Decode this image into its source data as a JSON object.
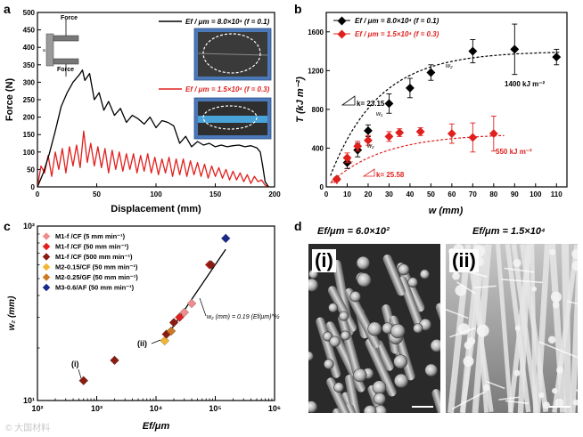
{
  "panels": {
    "a": {
      "letter": "a",
      "ylabel": "Force (N)",
      "xlabel": "Displacement (mm)",
      "yticks": [
        "0",
        "50",
        "100",
        "150",
        "200",
        "250",
        "300",
        "350",
        "400",
        "450",
        "500"
      ],
      "xticks": [
        "0",
        "50",
        "100",
        "150",
        "200"
      ],
      "inset_top_label": "Force",
      "inset_bottom_label": "Force",
      "legend": [
        {
          "text": "Ef / μm = 8.0×10⁴ (f = 0.1)",
          "color": "#000000"
        },
        {
          "text": "Ef / μm = 1.5×10⁴ (f = 0.3)",
          "color": "#e0201e"
        }
      ]
    },
    "b": {
      "letter": "b",
      "ylabel": "T (kJ m⁻²)",
      "xlabel": "w (mm)",
      "yticks": [
        "0",
        "400",
        "800",
        "1200",
        "1600"
      ],
      "xticks": [
        "0",
        "10",
        "20",
        "30",
        "40",
        "50",
        "60",
        "70",
        "80",
        "90",
        "100",
        "110"
      ],
      "legend": [
        {
          "text": "Ef / μm = 8.0×10⁴ (f = 0.1)",
          "color": "#000000"
        },
        {
          "text": "Ef / μm = 1.5×10⁴ (f = 0.3)",
          "color": "#e0201e"
        }
      ],
      "annotations": {
        "k1": "k= 23.15",
        "k2": "k= 25.58",
        "plateau_black": "1400 kJ m⁻²",
        "plateau_red": "550 kJ m⁻²",
        "w2a": "w₂",
        "w2b": "w₂",
        "w1a": "w₁",
        "w1b": "w₁",
        "w2c": "w₂"
      }
    },
    "c": {
      "letter": "c",
      "ylabel": "w₂ (mm)",
      "xlabel": "Ef/μm",
      "yticks": [
        "10¹",
        "10²"
      ],
      "xticks": [
        "10²",
        "10³",
        "10⁴",
        "10⁵",
        "10⁶"
      ],
      "legend": [
        {
          "text": "M1-f /CF (5 mm min⁻¹)",
          "color": "#f08c8c"
        },
        {
          "text": "M1-f /CF (50 mm min⁻¹)",
          "color": "#e0201e"
        },
        {
          "text": "M1-f /CF (500 mm min⁻¹)",
          "color": "#8b1a10"
        },
        {
          "text": "M2-0.15/CF (50 mm min⁻¹)",
          "color": "#f2b632"
        },
        {
          "text": "M2-0.25/GF (50 mm min⁻¹)",
          "color": "#cc7a22"
        },
        {
          "text": "M3-0.6/AF (50 mm min⁻¹)",
          "color": "#1a2a8c"
        }
      ],
      "fit_label": "w₂ (mm) = 0.19 (Ef/μm)^½",
      "point_labels": {
        "i": "(i)",
        "ii": "(ii)"
      }
    },
    "d": {
      "letter": "d",
      "title_i": "Ef/μm = 6.0×10²",
      "title_ii": "Ef/μm = 1.5×10⁴",
      "label_i": "(i)",
      "label_ii": "(ii)"
    }
  },
  "watermark": "© 大国材料",
  "chart_data": [
    {
      "type": "line",
      "title": "",
      "xlabel": "Displacement (mm)",
      "ylabel": "Force (N)",
      "xlim": [
        0,
        200
      ],
      "ylim": [
        0,
        500
      ],
      "series": [
        {
          "name": "Ef/μm = 8.0×10⁴ (f = 0.1)",
          "color": "#000000",
          "x": [
            0,
            5,
            10,
            15,
            20,
            25,
            30,
            35,
            38,
            40,
            44,
            48,
            52,
            56,
            60,
            65,
            70,
            75,
            80,
            85,
            90,
            95,
            100,
            105,
            110,
            115,
            120,
            125,
            130,
            135,
            140,
            145,
            150,
            155,
            160,
            165,
            170,
            175,
            180,
            185,
            188,
            190,
            192,
            195
          ],
          "y": [
            0,
            40,
            95,
            160,
            230,
            270,
            300,
            320,
            335,
            305,
            325,
            250,
            270,
            220,
            245,
            205,
            225,
            185,
            205,
            195,
            180,
            200,
            170,
            190,
            185,
            175,
            125,
            145,
            115,
            130,
            120,
            125,
            115,
            120,
            115,
            118,
            120,
            115,
            118,
            112,
            100,
            60,
            15,
            0
          ]
        },
        {
          "name": "Ef/μm = 1.5×10⁴ (f = 0.3)",
          "color": "#e0201e",
          "x": [
            0,
            3,
            6,
            9,
            12,
            15,
            18,
            21,
            24,
            27,
            30,
            33,
            36,
            39,
            42,
            45,
            48,
            51,
            54,
            57,
            60,
            63,
            66,
            69,
            72,
            75,
            78,
            81,
            84,
            87,
            90,
            93,
            96,
            99,
            102,
            105,
            108,
            111,
            114,
            117,
            120,
            123,
            126,
            129,
            132,
            135,
            138,
            141,
            144,
            147,
            150,
            153,
            156,
            159,
            162,
            165,
            168,
            171,
            174,
            177,
            180,
            183,
            186,
            189,
            192,
            195
          ],
          "y": [
            0,
            60,
            40,
            90,
            30,
            100,
            50,
            110,
            40,
            115,
            60,
            120,
            55,
            160,
            70,
            125,
            60,
            115,
            55,
            110,
            40,
            105,
            50,
            100,
            45,
            95,
            50,
            95,
            40,
            90,
            45,
            95,
            40,
            85,
            35,
            80,
            40,
            85,
            30,
            80,
            35,
            80,
            30,
            75,
            35,
            70,
            30,
            65,
            25,
            60,
            30,
            55,
            25,
            50,
            20,
            45,
            20,
            40,
            15,
            35,
            10,
            30,
            15,
            20,
            5,
            0
          ]
        }
      ]
    },
    {
      "type": "scatter",
      "title": "",
      "xlabel": "w (mm)",
      "ylabel": "T (kJ m⁻²)",
      "xlim": [
        0,
        115
      ],
      "ylim": [
        0,
        1800
      ],
      "series": [
        {
          "name": "Ef/μm = 8.0×10⁴ (f = 0.1)",
          "color": "#000000",
          "x": [
            5,
            10,
            15,
            20,
            30,
            40,
            50,
            70,
            90,
            110
          ],
          "y": [
            80,
            250,
            380,
            580,
            860,
            1020,
            1180,
            1400,
            1420,
            1340
          ],
          "err": [
            20,
            60,
            70,
            60,
            100,
            100,
            80,
            120,
            260,
            80
          ]
        },
        {
          "name": "Ef/μm = 1.5×10⁴ (f = 0.3)",
          "color": "#e0201e",
          "x": [
            5,
            10,
            15,
            20,
            30,
            35,
            45,
            60,
            70,
            80
          ],
          "y": [
            80,
            300,
            420,
            480,
            520,
            560,
            570,
            550,
            510,
            550
          ],
          "err": [
            20,
            50,
            50,
            50,
            50,
            40,
            40,
            100,
            150,
            180
          ]
        }
      ],
      "fits": [
        {
          "name": "black-fit",
          "plateau": 1400,
          "k": 23.15
        },
        {
          "name": "red-fit",
          "plateau": 550,
          "k": 25.58
        }
      ]
    },
    {
      "type": "scatter",
      "title": "",
      "xlabel": "Ef/μm",
      "ylabel": "w₂ (mm)",
      "xscale": "log",
      "yscale": "log",
      "xlim": [
        100,
        1000000
      ],
      "ylim": [
        10,
        100
      ],
      "points": [
        {
          "series": "M1-f /CF (500 mm min⁻¹)",
          "x": 600,
          "y": 13
        },
        {
          "series": "M1-f /CF (500 mm min⁻¹)",
          "x": 2000,
          "y": 17
        },
        {
          "series": "M2-0.15/CF (50 mm min⁻¹)",
          "x": 14000,
          "y": 22
        },
        {
          "series": "M1-f /CF (500 mm min⁻¹)",
          "x": 15000,
          "y": 24
        },
        {
          "series": "M2-0.25/GF (50 mm min⁻¹)",
          "x": 18000,
          "y": 25
        },
        {
          "series": "M1-f /CF (500 mm min⁻¹)",
          "x": 20000,
          "y": 28
        },
        {
          "series": "M1-f /CF (50 mm min⁻¹)",
          "x": 25000,
          "y": 30
        },
        {
          "series": "M1-f /CF (5 mm min⁻¹)",
          "x": 30000,
          "y": 32
        },
        {
          "series": "M1-f /CF (5 mm min⁻¹)",
          "x": 40000,
          "y": 36
        },
        {
          "series": "M1-f /CF (50 mm min⁻¹)",
          "x": 80000,
          "y": 60
        },
        {
          "series": "M1-f /CF (500 mm min⁻¹)",
          "x": 85000,
          "y": 60
        },
        {
          "series": "M3-0.6/AF (50 mm min⁻¹)",
          "x": 150000,
          "y": 85
        }
      ],
      "fit": {
        "coef": 0.19,
        "exponent": 0.5,
        "xrange": [
          13000,
          150000
        ]
      }
    }
  ]
}
